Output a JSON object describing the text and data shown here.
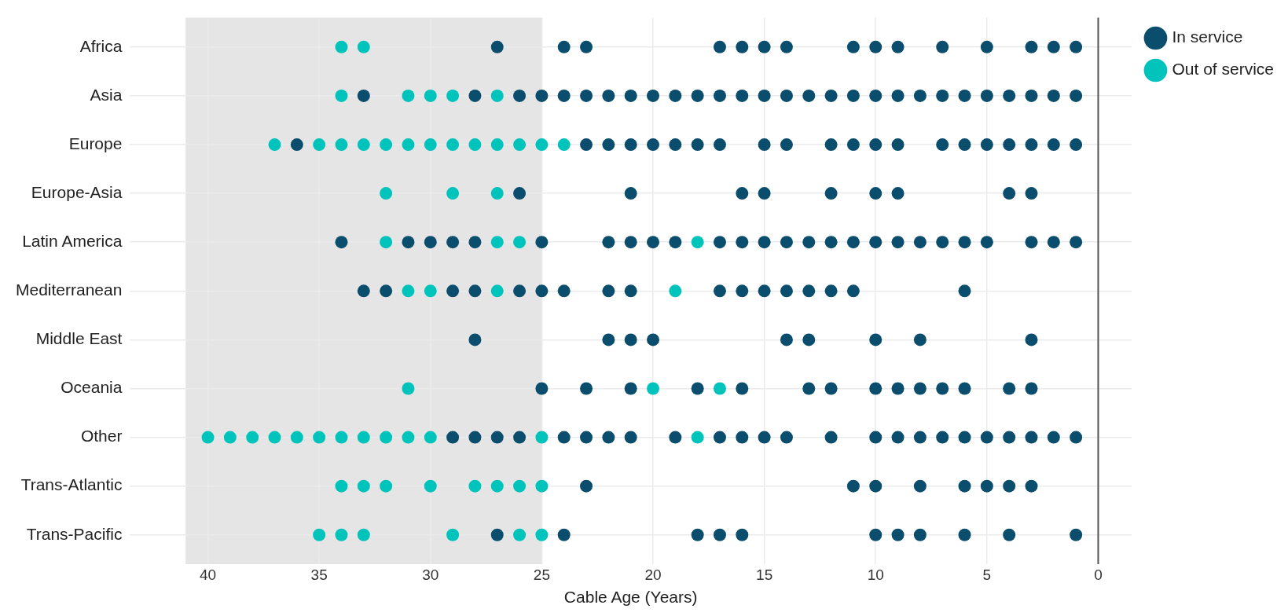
{
  "chart_data": {
    "type": "scatter",
    "orientation": "horizontal",
    "xlabel": "Cable Age (Years)",
    "categories": [
      "Africa",
      "Asia",
      "Europe",
      "Europe-Asia",
      "Latin America",
      "Mediterranean",
      "Middle East",
      "Oceania",
      "Other",
      "Trans-Atlantic",
      "Trans-Pacific"
    ],
    "xlim": [
      43.5,
      -1.5
    ],
    "xticks": [
      40,
      35,
      30,
      25,
      20,
      15,
      10,
      5,
      0
    ],
    "grid": true,
    "legend": "top right",
    "marker": "circle",
    "bands": [
      {
        "axis": "x",
        "from": 41,
        "to": 25,
        "color": "#e5e5e5"
      }
    ],
    "ref_lines": [
      {
        "axis": "x",
        "value": 0,
        "color": "#555555"
      }
    ],
    "series": [
      {
        "name": "In service",
        "color": "#0b4d6c",
        "x": [
          "Africa",
          "Africa",
          "Africa",
          "Africa",
          "Africa",
          "Africa",
          "Africa",
          "Africa",
          "Africa",
          "Africa",
          "Africa",
          "Africa",
          "Africa",
          "Africa",
          "Africa",
          "Asia",
          "Asia",
          "Asia",
          "Asia",
          "Asia",
          "Asia",
          "Asia",
          "Asia",
          "Asia",
          "Asia",
          "Asia",
          "Asia",
          "Asia",
          "Asia",
          "Asia",
          "Asia",
          "Asia",
          "Asia",
          "Asia",
          "Asia",
          "Asia",
          "Asia",
          "Asia",
          "Asia",
          "Asia",
          "Asia",
          "Asia",
          "Asia",
          "Europe",
          "Europe",
          "Europe",
          "Europe",
          "Europe",
          "Europe",
          "Europe",
          "Europe",
          "Europe",
          "Europe",
          "Europe",
          "Europe",
          "Europe",
          "Europe",
          "Europe",
          "Europe",
          "Europe",
          "Europe",
          "Europe",
          "Europe",
          "Europe",
          "Europe-Asia",
          "Europe-Asia",
          "Europe-Asia",
          "Europe-Asia",
          "Europe-Asia",
          "Europe-Asia",
          "Europe-Asia",
          "Europe-Asia",
          "Europe-Asia",
          "Latin America",
          "Latin America",
          "Latin America",
          "Latin America",
          "Latin America",
          "Latin America",
          "Latin America",
          "Latin America",
          "Latin America",
          "Latin America",
          "Latin America",
          "Latin America",
          "Latin America",
          "Latin America",
          "Latin America",
          "Latin America",
          "Latin America",
          "Latin America",
          "Latin America",
          "Latin America",
          "Latin America",
          "Latin America",
          "Latin America",
          "Latin America",
          "Latin America",
          "Latin America",
          "Mediterranean",
          "Mediterranean",
          "Mediterranean",
          "Mediterranean",
          "Mediterranean",
          "Mediterranean",
          "Mediterranean",
          "Mediterranean",
          "Mediterranean",
          "Mediterranean",
          "Mediterranean",
          "Mediterranean",
          "Mediterranean",
          "Mediterranean",
          "Mediterranean",
          "Mediterranean",
          "Mediterranean",
          "Middle East",
          "Middle East",
          "Middle East",
          "Middle East",
          "Middle East",
          "Middle East",
          "Middle East",
          "Middle East",
          "Middle East",
          "Oceania",
          "Oceania",
          "Oceania",
          "Oceania",
          "Oceania",
          "Oceania",
          "Oceania",
          "Oceania",
          "Oceania",
          "Oceania",
          "Oceania",
          "Oceania",
          "Oceania",
          "Oceania",
          "Other",
          "Other",
          "Other",
          "Other",
          "Other",
          "Other",
          "Other",
          "Other",
          "Other",
          "Other",
          "Other",
          "Other",
          "Other",
          "Other",
          "Other",
          "Other",
          "Other",
          "Other",
          "Other",
          "Other",
          "Other",
          "Other",
          "Other",
          "Other",
          "Trans-Atlantic",
          "Trans-Atlantic",
          "Trans-Atlantic",
          "Trans-Atlantic",
          "Trans-Atlantic",
          "Trans-Atlantic",
          "Trans-Atlantic",
          "Trans-Atlantic",
          "Trans-Pacific",
          "Trans-Pacific",
          "Trans-Pacific",
          "Trans-Pacific",
          "Trans-Pacific",
          "Trans-Pacific",
          "Trans-Pacific",
          "Trans-Pacific",
          "Trans-Pacific",
          "Trans-Pacific",
          "Trans-Pacific"
        ],
        "values": [
          27,
          24,
          23,
          17,
          16,
          15,
          14,
          11,
          10,
          9,
          7,
          5,
          3,
          2,
          1,
          33,
          28,
          26,
          25,
          24,
          23,
          22,
          21,
          20,
          19,
          18,
          17,
          16,
          15,
          14,
          13,
          12,
          11,
          10,
          9,
          8,
          7,
          6,
          5,
          4,
          3,
          2,
          1,
          36,
          23,
          22,
          21,
          20,
          19,
          18,
          17,
          15,
          14,
          12,
          11,
          10,
          9,
          7,
          6,
          5,
          4,
          3,
          2,
          1,
          26,
          21,
          16,
          15,
          12,
          10,
          9,
          4,
          3,
          34,
          31,
          30,
          29,
          28,
          25,
          22,
          21,
          20,
          19,
          17,
          16,
          15,
          14,
          13,
          12,
          11,
          10,
          9,
          8,
          7,
          6,
          5,
          3,
          2,
          1,
          33,
          32,
          29,
          28,
          26,
          25,
          24,
          22,
          21,
          17,
          16,
          15,
          14,
          13,
          12,
          11,
          6,
          28,
          22,
          21,
          20,
          14,
          13,
          10,
          8,
          3,
          25,
          23,
          21,
          18,
          16,
          13,
          12,
          10,
          9,
          8,
          7,
          6,
          4,
          3,
          29,
          28,
          27,
          26,
          24,
          23,
          22,
          21,
          19,
          17,
          16,
          15,
          14,
          12,
          10,
          9,
          8,
          7,
          6,
          5,
          4,
          3,
          2,
          1,
          23,
          11,
          10,
          8,
          6,
          5,
          4,
          3,
          27,
          24,
          18,
          17,
          16,
          10,
          9,
          8,
          6,
          4,
          1
        ]
      },
      {
        "name": "Out of service",
        "color": "#00c4bb",
        "x": [
          "Africa",
          "Africa",
          "Asia",
          "Asia",
          "Asia",
          "Asia",
          "Asia",
          "Europe",
          "Europe",
          "Europe",
          "Europe",
          "Europe",
          "Europe",
          "Europe",
          "Europe",
          "Europe",
          "Europe",
          "Europe",
          "Europe",
          "Europe",
          "Europe-Asia",
          "Europe-Asia",
          "Europe-Asia",
          "Latin America",
          "Latin America",
          "Latin America",
          "Latin America",
          "Mediterranean",
          "Mediterranean",
          "Mediterranean",
          "Mediterranean",
          "Oceania",
          "Oceania",
          "Oceania",
          "Other",
          "Other",
          "Other",
          "Other",
          "Other",
          "Other",
          "Other",
          "Other",
          "Other",
          "Other",
          "Other",
          "Other",
          "Other",
          "Trans-Atlantic",
          "Trans-Atlantic",
          "Trans-Atlantic",
          "Trans-Atlantic",
          "Trans-Atlantic",
          "Trans-Atlantic",
          "Trans-Atlantic",
          "Trans-Atlantic",
          "Trans-Pacific",
          "Trans-Pacific",
          "Trans-Pacific",
          "Trans-Pacific",
          "Trans-Pacific",
          "Trans-Pacific"
        ],
        "values": [
          34,
          33,
          34,
          31,
          30,
          29,
          27,
          37,
          35,
          34,
          33,
          32,
          31,
          30,
          29,
          28,
          27,
          26,
          25,
          24,
          32,
          29,
          27,
          32,
          27,
          26,
          18,
          31,
          30,
          27,
          19,
          31,
          20,
          17,
          40,
          39,
          38,
          37,
          36,
          35,
          34,
          33,
          32,
          31,
          30,
          25,
          18,
          34,
          33,
          32,
          30,
          28,
          27,
          26,
          25,
          35,
          34,
          33,
          29,
          26,
          25
        ]
      }
    ]
  }
}
